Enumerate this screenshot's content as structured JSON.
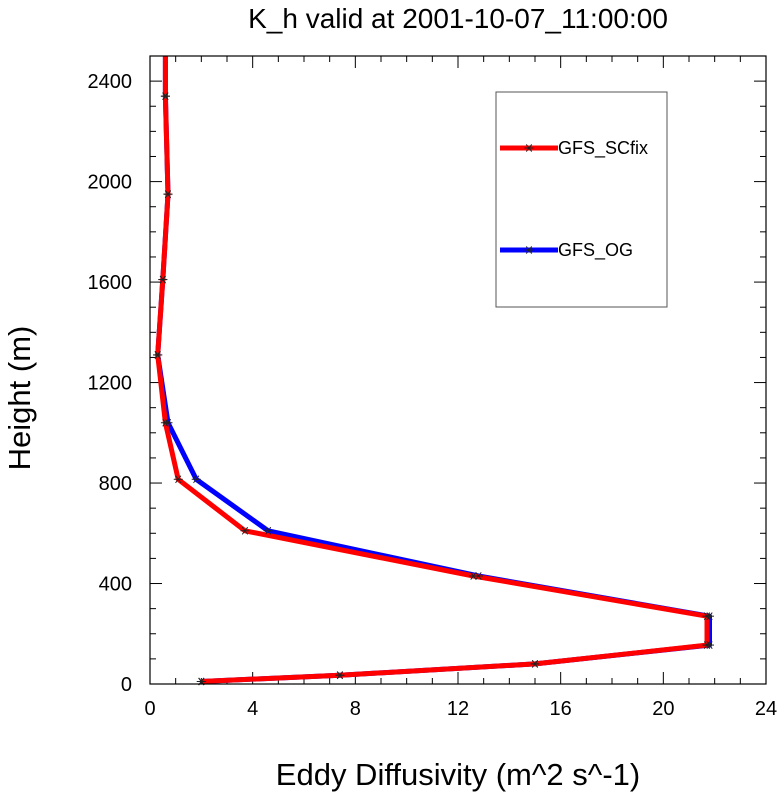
{
  "chart_data": {
    "type": "line",
    "title": "K_h valid at 2001-10-07_11:00:00",
    "xlabel": "Eddy Diffusivity (m^2 s^-1)",
    "ylabel": "Height (m)",
    "xlim": [
      0,
      24
    ],
    "ylim": [
      0,
      2500
    ],
    "x_ticks": [
      0,
      4,
      8,
      12,
      16,
      20,
      24
    ],
    "y_ticks": [
      0,
      400,
      800,
      1200,
      1600,
      2000,
      2400
    ],
    "legend_position": "top-right",
    "series": [
      {
        "name": "GFS_OG",
        "color": "#0000ff",
        "marker": "asterisk",
        "points": [
          {
            "x": 2.0,
            "y": 10
          },
          {
            "x": 7.4,
            "y": 35
          },
          {
            "x": 15.0,
            "y": 80
          },
          {
            "x": 21.8,
            "y": 155
          },
          {
            "x": 21.8,
            "y": 270
          },
          {
            "x": 12.8,
            "y": 430
          },
          {
            "x": 4.6,
            "y": 610
          },
          {
            "x": 1.8,
            "y": 815
          },
          {
            "x": 0.7,
            "y": 1040
          },
          {
            "x": 0.3,
            "y": 1310
          },
          {
            "x": 0.5,
            "y": 1610
          },
          {
            "x": 0.7,
            "y": 1950
          },
          {
            "x": 0.6,
            "y": 2340
          },
          {
            "x": 0.6,
            "y": 2500
          }
        ]
      },
      {
        "name": "GFS_SCfix",
        "color": "#ff0000",
        "marker": "asterisk",
        "points": [
          {
            "x": 2.0,
            "y": 10
          },
          {
            "x": 7.4,
            "y": 35
          },
          {
            "x": 15.0,
            "y": 80
          },
          {
            "x": 21.7,
            "y": 155
          },
          {
            "x": 21.7,
            "y": 270
          },
          {
            "x": 12.6,
            "y": 430
          },
          {
            "x": 3.7,
            "y": 610
          },
          {
            "x": 1.1,
            "y": 815
          },
          {
            "x": 0.6,
            "y": 1040
          },
          {
            "x": 0.3,
            "y": 1310
          },
          {
            "x": 0.5,
            "y": 1610
          },
          {
            "x": 0.7,
            "y": 1950
          },
          {
            "x": 0.6,
            "y": 2340
          },
          {
            "x": 0.6,
            "y": 2500
          }
        ]
      }
    ],
    "legend_order": [
      "GFS_SCfix",
      "GFS_OG"
    ]
  }
}
